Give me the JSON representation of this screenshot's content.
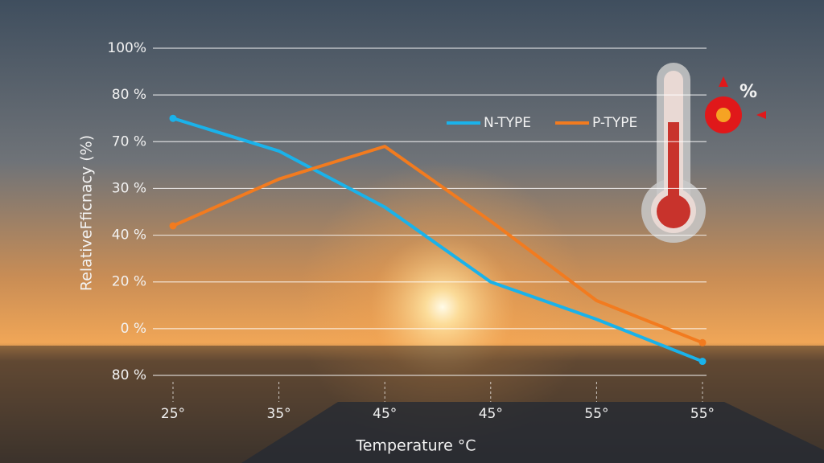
{
  "chart_data": {
    "type": "line",
    "y_axis_label": "RelativeFficnacy (%)",
    "x_axis_label": "Temperature °C",
    "icon_label": "%",
    "categories": [
      "25°",
      "35°",
      "45°",
      "45°",
      "55°",
      "55°"
    ],
    "series": [
      {
        "name": "N-TYPE",
        "color": "#1ab2ea",
        "values": [
          5.5,
          4.8,
          3.6,
          2.0,
          1.2,
          0.3
        ]
      },
      {
        "name": "P-TYPE",
        "color": "#f27b1f",
        "values": [
          3.2,
          4.2,
          4.9,
          3.3,
          1.6,
          0.7
        ]
      }
    ],
    "ylim": [
      0,
      7
    ],
    "yticks": [
      {
        "value": 0,
        "label": "80 %"
      },
      {
        "value": 1,
        "label": "0 %"
      },
      {
        "value": 2,
        "label": "20 %"
      },
      {
        "value": 3,
        "label": "40 %"
      },
      {
        "value": 4,
        "label": "30 %"
      },
      {
        "value": 5,
        "label": "70 %"
      },
      {
        "value": 6,
        "label": "80 %"
      },
      {
        "value": 7,
        "label": "100%"
      }
    ],
    "grid": true
  }
}
